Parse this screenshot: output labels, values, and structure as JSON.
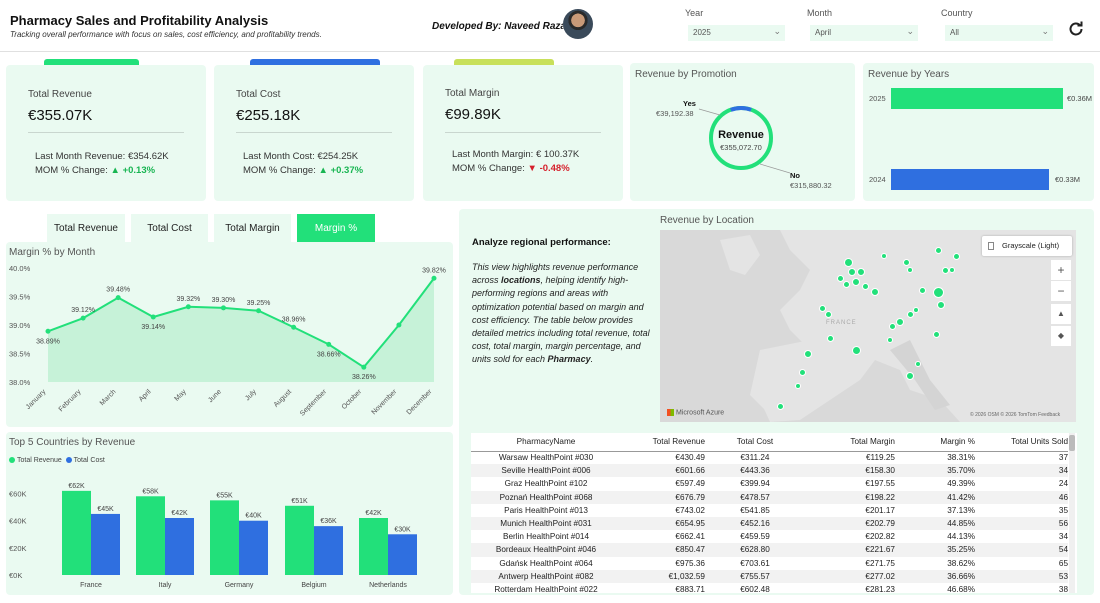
{
  "header": {
    "title": "Pharmacy Sales and Profitability Analysis",
    "subtitle": "Tracking overall performance with focus on sales, cost efficiency, and profitability trends.",
    "developed_by": "Developed By:  Naveed Raza"
  },
  "filters": {
    "year": {
      "label": "Year",
      "value": "2025"
    },
    "month": {
      "label": "Month",
      "value": "April"
    },
    "country": {
      "label": "Country",
      "value": "All"
    }
  },
  "kpis": [
    {
      "label": "Total Revenue",
      "value": "€355.07K",
      "last_label": "Last Month Revenue: €354.62K",
      "mom_label": "MOM % Change:",
      "mom_arrow": "▲",
      "mom_value": "+0.13%",
      "accent": "#22e07a"
    },
    {
      "label": "Total Cost",
      "value": "€255.18K",
      "last_label": "Last Month Cost: €254.25K",
      "mom_label": "MOM % Change:",
      "mom_arrow": "▲",
      "mom_value": "+0.37%",
      "accent": "#2f6fe0"
    },
    {
      "label": "Total Margin",
      "value": "€99.89K",
      "last_label": "Last Month Margin: € 100.37K",
      "mom_label": "MOM % Change:",
      "mom_arrow": "▼",
      "mom_value": "-0.48%",
      "accent": "#c8e05a"
    }
  ],
  "promotion": {
    "title": "Revenue by Promotion",
    "center_label": "Revenue",
    "center_value": "€355,072.70",
    "yes_label": "Yes",
    "yes_value": "€39,192.38",
    "no_label": "No",
    "no_value": "€315,880.32",
    "yes_amount": 39192.38,
    "no_amount": 315880.32
  },
  "years_chart": {
    "title": "Revenue by Years",
    "bars": [
      {
        "year": "2025",
        "label": "€0.36M",
        "value": 0.36,
        "color": "#22e07a"
      },
      {
        "year": "2024",
        "label": "€0.33M",
        "value": 0.33,
        "color": "#2f6fe0"
      }
    ]
  },
  "tabs": [
    "Total Revenue",
    "Total Cost",
    "Total Margin",
    "Margin %"
  ],
  "margin_chart": {
    "title": "Margin % by Month",
    "yticks": [
      "40.0%",
      "39.5%",
      "39.0%",
      "38.5%",
      "38.0%"
    ],
    "months": [
      "January",
      "February",
      "March",
      "April",
      "May",
      "June",
      "July",
      "August",
      "September",
      "October",
      "November",
      "December"
    ],
    "values": [
      38.89,
      39.12,
      39.48,
      39.14,
      39.32,
      39.3,
      39.25,
      38.96,
      38.66,
      38.26,
      39.0,
      39.82
    ],
    "labels": [
      "38.89%",
      "39.12%",
      "39.48%",
      "39.14%",
      "39.32%",
      "39.30%",
      "39.25%",
      "38.96%",
      "38.66%",
      "38.26%",
      "",
      "39.82%"
    ],
    "ymin": 38.0,
    "ymax": 40.0
  },
  "countries_chart": {
    "title": "Top 5 Countries by Revenue",
    "legend_revenue": "Total Revenue",
    "legend_cost": "Total Cost",
    "yticks": [
      "€60K",
      "€40K",
      "€20K",
      "€0K"
    ],
    "categories": [
      "France",
      "Italy",
      "Germany",
      "Belgium",
      "Netherlands"
    ],
    "revenue": [
      62,
      58,
      55,
      51,
      42
    ],
    "cost": [
      45,
      42,
      40,
      36,
      30
    ],
    "revenue_labels": [
      "€62K",
      "€58K",
      "€55K",
      "€51K",
      "€42K"
    ],
    "cost_labels": [
      "€45K",
      "€42K",
      "€40K",
      "€36K",
      "€30K"
    ],
    "ymax": 70
  },
  "regional": {
    "title": "Analyze regional performance:",
    "text_1": "This view highlights revenue performance across ",
    "text_bold_1": "locations",
    "text_2": ", helping identify high-performing regions and areas with optimization potential based on margin and cost efficiency. The table below provides detailed metrics including total revenue, total cost, total margin, margin percentage, and units sold for each ",
    "text_bold_2": "Pharmacy",
    "text_3": "."
  },
  "map": {
    "title": "Revenue by Location",
    "style_label": "Grayscale (Light)",
    "watermark": "Microsoft Azure",
    "copyright": "© 2026 OSM  © 2026 TomTom  Feedback",
    "country_label": "FRANCE",
    "zoom_in": "+",
    "zoom_out": "−"
  },
  "table": {
    "columns": [
      "PharmacyName",
      "Total Revenue",
      "Total Cost",
      "Total Margin",
      "Margin %",
      "Total Units Sold"
    ],
    "rows": [
      [
        "Warsaw HealthPoint #030",
        "€430.49",
        "€311.24",
        "€119.25",
        "38.31%",
        "37"
      ],
      [
        "Seville HealthPoint #006",
        "€601.66",
        "€443.36",
        "€158.30",
        "35.70%",
        "34"
      ],
      [
        "Graz HealthPoint #102",
        "€597.49",
        "€399.94",
        "€197.55",
        "49.39%",
        "24"
      ],
      [
        "Poznań HealthPoint #068",
        "€676.79",
        "€478.57",
        "€198.22",
        "41.42%",
        "46"
      ],
      [
        "Paris HealthPoint #013",
        "€743.02",
        "€541.85",
        "€201.17",
        "37.13%",
        "35"
      ],
      [
        "Munich HealthPoint #031",
        "€654.95",
        "€452.16",
        "€202.79",
        "44.85%",
        "56"
      ],
      [
        "Berlin HealthPoint #014",
        "€662.41",
        "€459.59",
        "€202.82",
        "44.13%",
        "34"
      ],
      [
        "Bordeaux HealthPoint #046",
        "€850.47",
        "€628.80",
        "€221.67",
        "35.25%",
        "54"
      ],
      [
        "Gdańsk HealthPoint #064",
        "€975.36",
        "€703.61",
        "€271.75",
        "38.62%",
        "65"
      ],
      [
        "Antwerp HealthPoint #082",
        "€1,032.59",
        "€755.57",
        "€277.02",
        "36.66%",
        "53"
      ],
      [
        "Rotterdam HealthPoint #022",
        "€883.71",
        "€602.48",
        "€281.23",
        "46.68%",
        "38"
      ]
    ]
  },
  "colors": {
    "green": "#22e07a",
    "blue": "#2f6fe0",
    "panel": "#eafaf1"
  }
}
